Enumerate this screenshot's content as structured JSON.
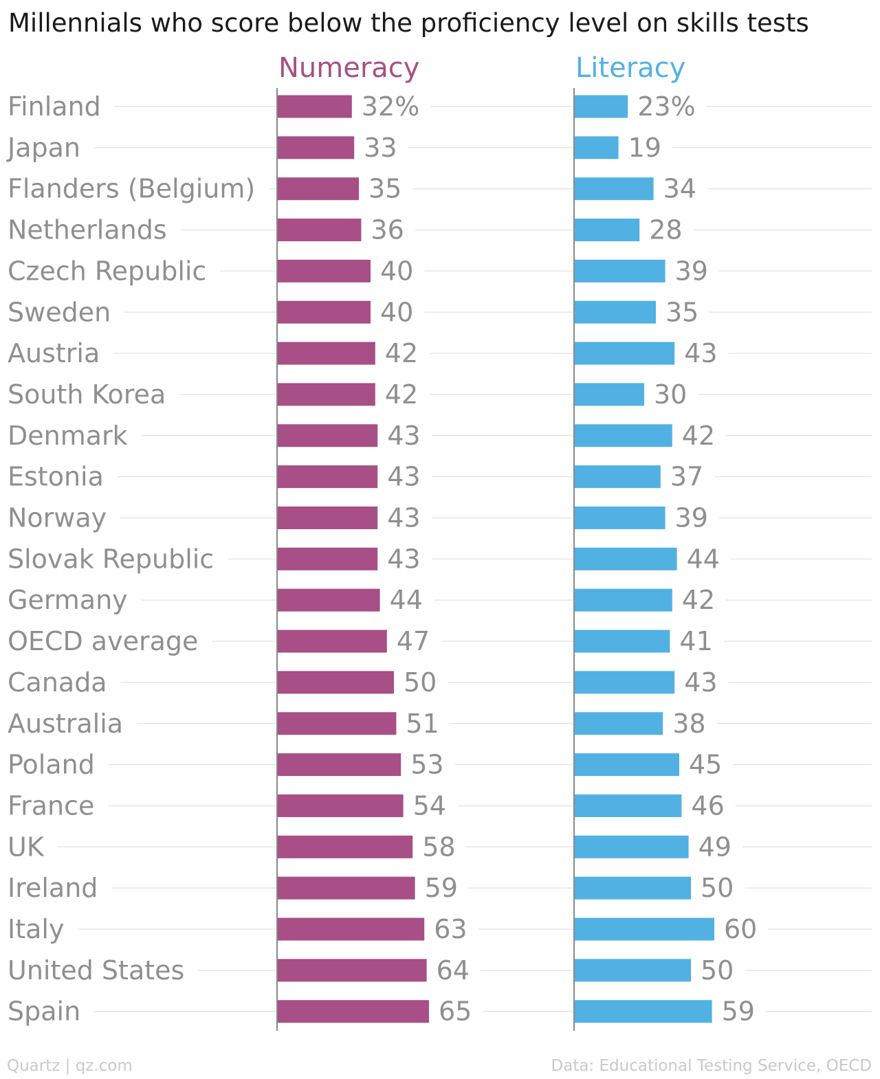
{
  "title": "Millennials who score below the proficiency level on skills tests",
  "footer": {
    "left": "Quartz | qz.com",
    "right": "Data: Educational Testing Service, OECD"
  },
  "colors": {
    "numeracy": "#a74f86",
    "literacy": "#52b1e3",
    "label": "#8f8f8f",
    "gridline": "#e6e6e6",
    "axis": "#888888"
  },
  "chart_data": {
    "type": "bar",
    "orientation": "horizontal",
    "unit": "%",
    "categories": [
      "Finland",
      "Japan",
      "Flanders (Belgium)",
      "Netherlands",
      "Czech Republic",
      "Sweden",
      "Austria",
      "South Korea",
      "Denmark",
      "Estonia",
      "Norway",
      "Slovak Republic",
      "Germany",
      "OECD average",
      "Canada",
      "Australia",
      "Poland",
      "France",
      "UK",
      "Ireland",
      "Italy",
      "United States",
      "Spain"
    ],
    "series": [
      {
        "name": "Numeracy",
        "color": "#a74f86",
        "values": [
          32,
          33,
          35,
          36,
          40,
          40,
          42,
          42,
          43,
          43,
          43,
          43,
          44,
          47,
          50,
          51,
          53,
          54,
          58,
          59,
          63,
          64,
          65
        ]
      },
      {
        "name": "Literacy",
        "color": "#52b1e3",
        "values": [
          23,
          19,
          34,
          28,
          39,
          35,
          43,
          30,
          42,
          37,
          39,
          44,
          42,
          41,
          43,
          38,
          45,
          46,
          49,
          50,
          60,
          50,
          59
        ]
      }
    ],
    "grid": true,
    "legend": "top, as column headers"
  }
}
